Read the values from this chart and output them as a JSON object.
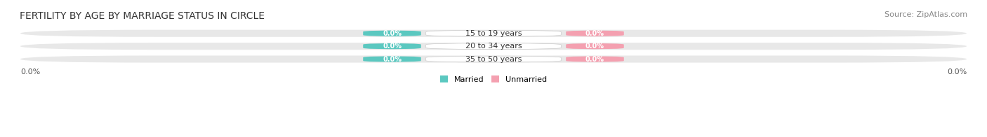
{
  "title": "FERTILITY BY AGE BY MARRIAGE STATUS IN CIRCLE",
  "source": "Source: ZipAtlas.com",
  "categories": [
    "15 to 19 years",
    "20 to 34 years",
    "35 to 50 years"
  ],
  "married_values": [
    0.0,
    0.0,
    0.0
  ],
  "unmarried_values": [
    0.0,
    0.0,
    0.0
  ],
  "married_color": "#5bc8c0",
  "unmarried_color": "#f4a0b0",
  "bar_bg_color": "#e8e8e8",
  "bar_fill_color": "#f5f5f5",
  "title_fontsize": 10,
  "source_fontsize": 8,
  "label_fontsize": 8,
  "axis_label_fontsize": 8,
  "xlim": [
    -1.0,
    1.0
  ],
  "background_color": "#ffffff"
}
